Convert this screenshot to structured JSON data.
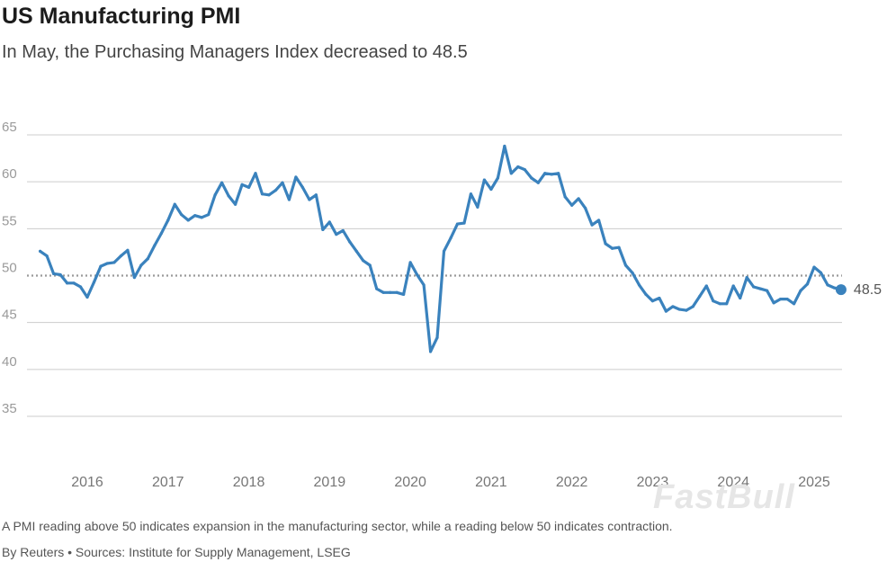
{
  "header": {
    "title": "US Manufacturing PMI",
    "subtitle": "In May, the Purchasing Managers Index decreased to 48.5"
  },
  "footer": {
    "note": "A PMI reading above 50 indicates expansion in the manufacturing sector, while a reading below 50 indicates contraction.",
    "byline": "By Reuters • Sources: Institute for Supply Management, LSEG"
  },
  "watermark": "FastBull",
  "colors": {
    "line": "#3a82bd",
    "grid": "#cccccc",
    "reference": "#9a9a9a"
  },
  "chart_data": {
    "type": "line",
    "title": "US Manufacturing PMI",
    "subtitle": "In May, the Purchasing Managers Index decreased to 48.5",
    "xlabel": "",
    "ylabel": "",
    "ylim": [
      30,
      67
    ],
    "xlim": [
      2015.3,
      2025.6
    ],
    "yticks": [
      35,
      40,
      45,
      50,
      55,
      60,
      65
    ],
    "xticks": [
      {
        "label": "2016",
        "x": 2016
      },
      {
        "label": "2017",
        "x": 2017
      },
      {
        "label": "2018",
        "x": 2018
      },
      {
        "label": "2019",
        "x": 2019
      },
      {
        "label": "2020",
        "x": 2020
      },
      {
        "label": "2021",
        "x": 2021
      },
      {
        "label": "2022",
        "x": 2022
      },
      {
        "label": "2023",
        "x": 2023
      },
      {
        "label": "2024",
        "x": 2024
      },
      {
        "label": "2025",
        "x": 2025
      }
    ],
    "reference_line": {
      "y": 50,
      "style": "dotted"
    },
    "end_label": "48.5",
    "series": [
      {
        "name": "US Manufacturing PMI",
        "start": {
          "year": 2015,
          "month": 6
        },
        "values": [
          52.6,
          52.1,
          50.2,
          50.1,
          49.2,
          49.2,
          48.8,
          47.7,
          49.3,
          51.0,
          51.3,
          51.4,
          52.1,
          52.7,
          49.8,
          51.1,
          51.8,
          53.2,
          54.5,
          55.9,
          57.6,
          56.5,
          55.9,
          56.4,
          56.2,
          56.5,
          58.6,
          59.9,
          58.5,
          57.6,
          59.7,
          59.4,
          60.9,
          58.7,
          58.6,
          59.1,
          59.9,
          58.1,
          60.5,
          59.4,
          58.1,
          58.6,
          54.9,
          55.7,
          54.4,
          54.8,
          53.6,
          52.6,
          51.6,
          51.1,
          48.6,
          48.2,
          48.2,
          48.2,
          48.0,
          51.4,
          50.1,
          49.0,
          41.9,
          43.4,
          52.6,
          54.0,
          55.5,
          55.6,
          58.7,
          57.3,
          60.2,
          59.2,
          60.4,
          63.8,
          60.9,
          61.6,
          61.3,
          60.4,
          59.9,
          60.9,
          60.8,
          60.9,
          58.4,
          57.5,
          58.2,
          57.2,
          55.4,
          55.9,
          53.4,
          52.9,
          53.0,
          51.1,
          50.3,
          49.0,
          48.0,
          47.3,
          47.6,
          46.2,
          46.7,
          46.4,
          46.3,
          46.7,
          47.8,
          48.9,
          47.3,
          47.0,
          47.0,
          48.9,
          47.6,
          49.8,
          48.8,
          48.6,
          48.4,
          47.1,
          47.5,
          47.5,
          47.0,
          48.4,
          49.1,
          50.9,
          50.3,
          49.0,
          48.7,
          48.5
        ]
      }
    ]
  }
}
